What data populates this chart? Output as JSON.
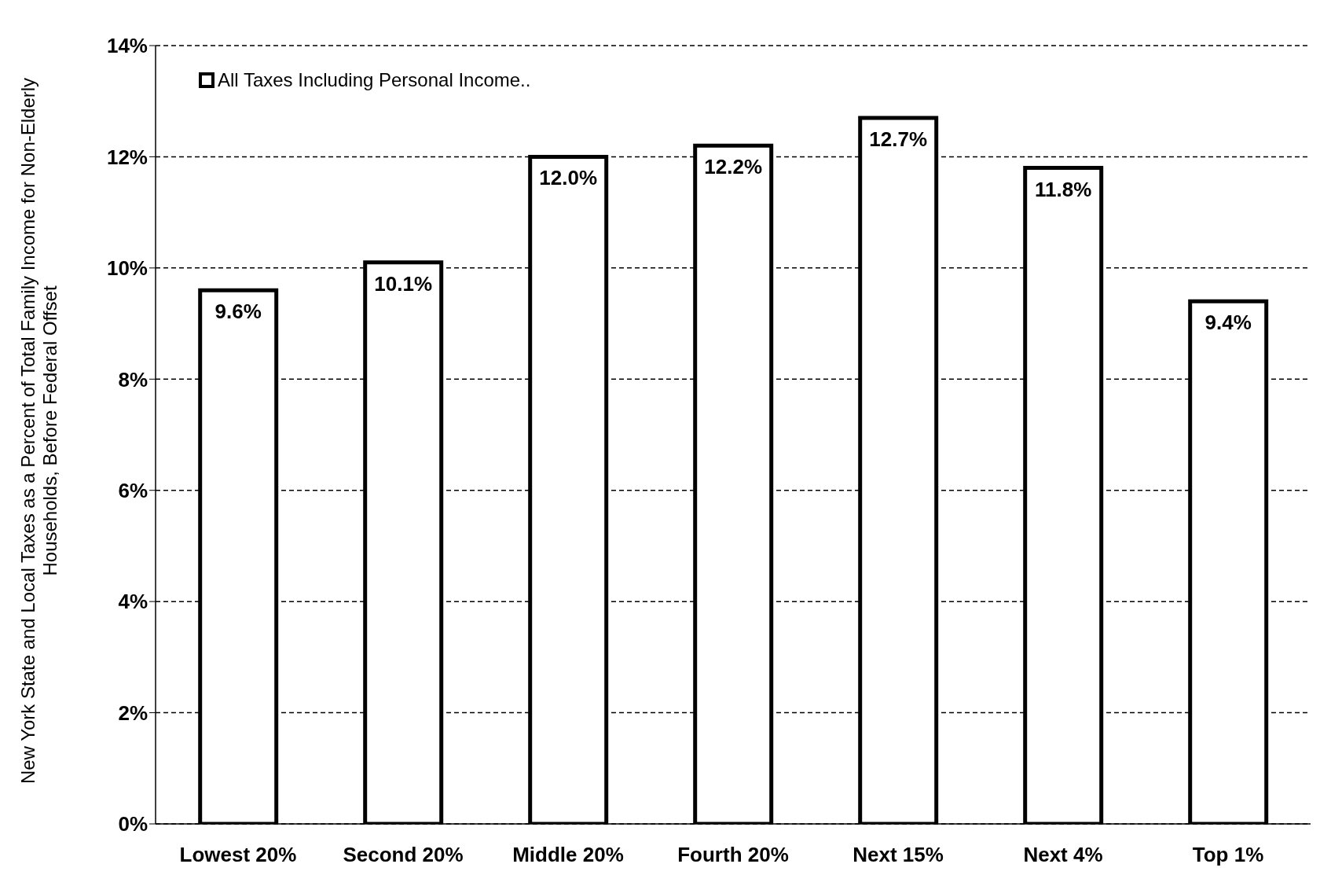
{
  "chart_data": {
    "type": "bar",
    "ylabel": "New York State and Local Taxes as a Percent of Total Family Income for Non-Elderly Households, Before Federal Offset",
    "categories": [
      "Lowest 20%",
      "Second 20%",
      "Middle 20%",
      "Fourth 20%",
      "Next 15%",
      "Next 4%",
      "Top 1%"
    ],
    "series": [
      {
        "name": "All Taxes Including Personal Income..",
        "color": "#ffffff",
        "values": [
          9.6,
          10.1,
          12.0,
          12.2,
          12.7,
          11.8,
          9.4
        ],
        "value_labels": [
          "9.6%",
          "10.1%",
          "12.0%",
          "12.2%",
          "12.7%",
          "11.8%",
          "9.4%"
        ]
      }
    ],
    "ylim": [
      0,
      14
    ],
    "yticks": [
      {
        "value": 0,
        "label": "0%"
      },
      {
        "value": 2,
        "label": "2%"
      },
      {
        "value": 4,
        "label": "4%"
      },
      {
        "value": 6,
        "label": "6%"
      },
      {
        "value": 8,
        "label": "8%"
      },
      {
        "value": 10,
        "label": "10%"
      },
      {
        "value": 12,
        "label": "12%"
      },
      {
        "value": 14,
        "label": "14%"
      }
    ],
    "grid": "y",
    "legend": "top left"
  }
}
